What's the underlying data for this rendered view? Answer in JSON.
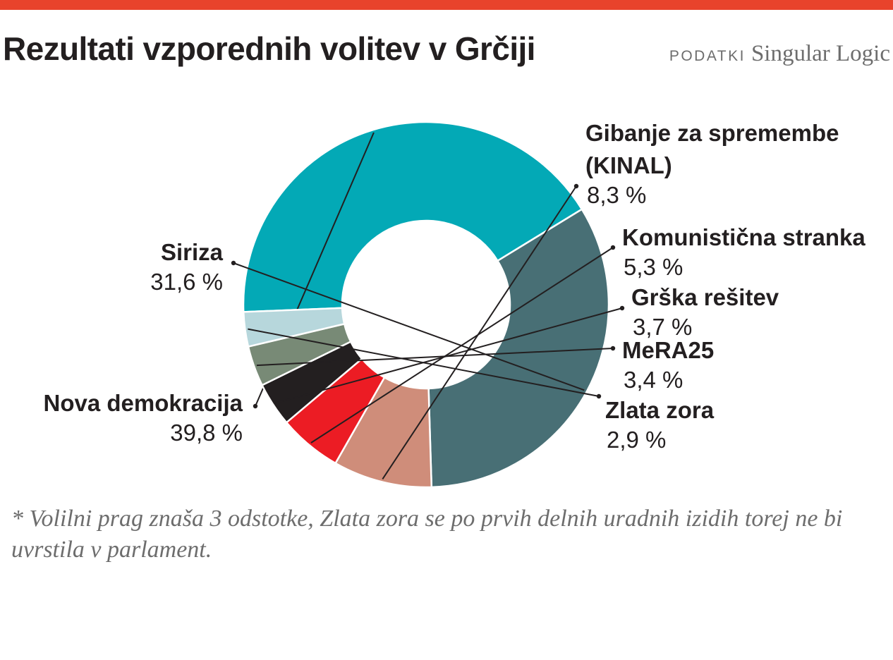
{
  "title": "Rezultati vzporednih volitev v Grčiji",
  "source": {
    "label": "PODATKI",
    "name": "Singular Logic"
  },
  "colors": {
    "accent_bar": "#e8432c",
    "text": "#231f20",
    "muted": "#6d6d6d"
  },
  "chart_data": {
    "type": "pie",
    "variant": "donut",
    "unit": "%",
    "slices": [
      {
        "label": "Nova demokracija",
        "label_lines": [
          "Nova demokracija"
        ],
        "value": 39.8,
        "value_text": "39,8 %",
        "color": "#03a9b6"
      },
      {
        "label": "Siriza",
        "label_lines": [
          "Siriza"
        ],
        "value": 31.6,
        "value_text": "31,6 %",
        "color": "#486f75"
      },
      {
        "label": "Gibanje za spremembe (KINAL)",
        "label_lines": [
          "Gibanje za spremembe",
          "(KINAL)"
        ],
        "value": 8.3,
        "value_text": "8,3 %",
        "color": "#cf8d7a"
      },
      {
        "label": "Komunistična stranka",
        "label_lines": [
          "Komunistična stranka"
        ],
        "value": 5.3,
        "value_text": "5,3 %",
        "color": "#ec1c24"
      },
      {
        "label": "Grška rešitev",
        "label_lines": [
          "Grška rešitev"
        ],
        "value": 3.7,
        "value_text": "3,7 %",
        "color": "#231f20"
      },
      {
        "label": "MeRA25",
        "label_lines": [
          "MeRA25"
        ],
        "value": 3.4,
        "value_text": "3,4 %",
        "color": "#788a76"
      },
      {
        "label": "Zlata zora",
        "label_lines": [
          "Zlata zora"
        ],
        "value": 2.9,
        "value_text": "2,9 %",
        "color": "#b7d7dc"
      }
    ]
  },
  "footnote": "* Volilni prag znaša 3 odstotke, Zlata zora se po prvih delnih uradnih izidih torej ne bi uvrstila v parlament."
}
